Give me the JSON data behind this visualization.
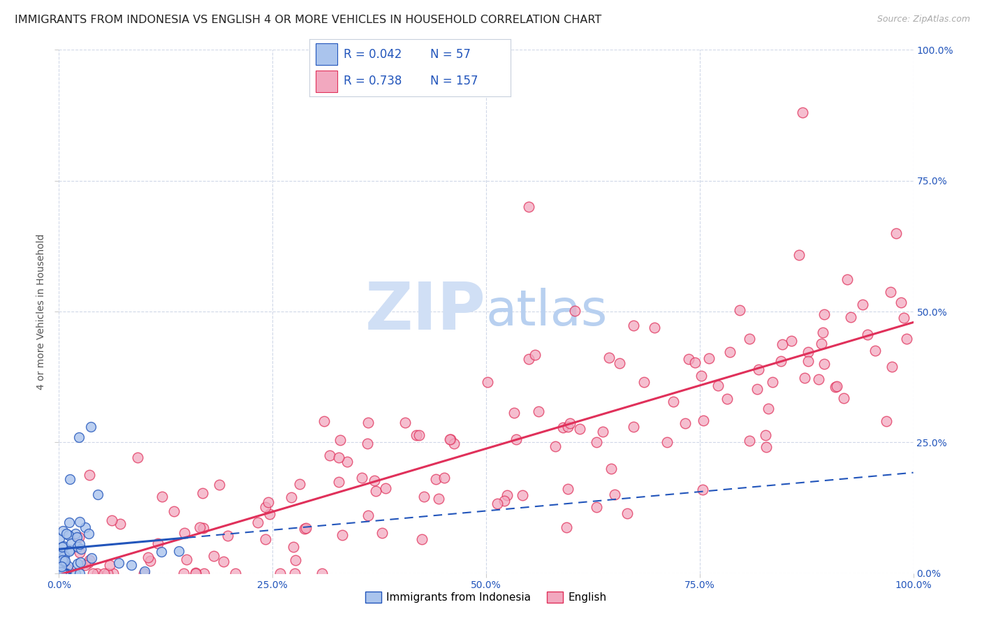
{
  "title": "IMMIGRANTS FROM INDONESIA VS ENGLISH 4 OR MORE VEHICLES IN HOUSEHOLD CORRELATION CHART",
  "source": "Source: ZipAtlas.com",
  "ylabel": "4 or more Vehicles in Household",
  "xmin": 0.0,
  "xmax": 100.0,
  "ymin": 0.0,
  "ymax": 100.0,
  "legend_R1": "0.042",
  "legend_N1": "57",
  "legend_R2": "0.738",
  "legend_N2": "157",
  "color_indonesia": "#aac4ed",
  "color_english": "#f2a8bf",
  "color_line_indonesia": "#2255bb",
  "color_line_english": "#e0305a",
  "color_blue_text": "#2255bb",
  "background_color": "#ffffff",
  "grid_color": "#d0d8e8",
  "title_fontsize": 11.5,
  "axis_label_fontsize": 10,
  "tick_fontsize": 10,
  "legend_fontsize": 12,
  "watermark_color": "#d0dff5",
  "source_color": "#aaaaaa"
}
